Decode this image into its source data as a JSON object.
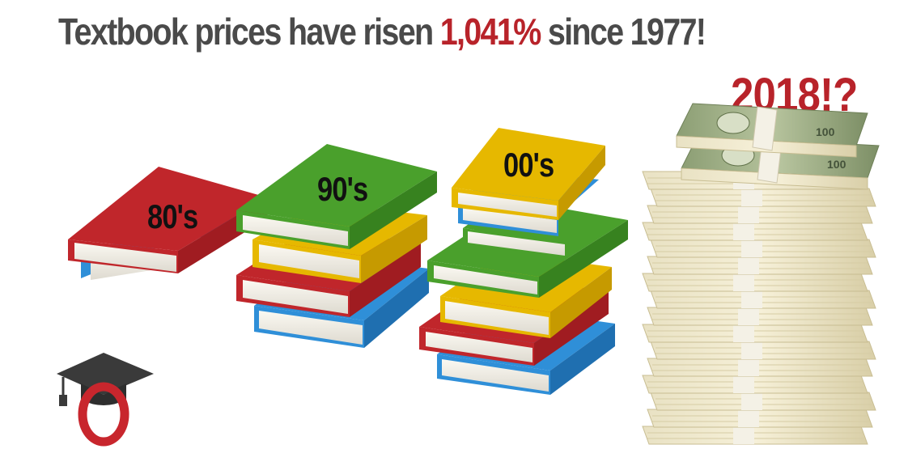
{
  "headline": {
    "prefix": "Textbook prices have risen ",
    "highlight": "1,041%",
    "suffix": " since 1977!",
    "text_color": "#4a4a4a",
    "highlight_color": "#b8232a"
  },
  "year_tag": {
    "text": "2018!?",
    "color": "#b8232a"
  },
  "stacks": [
    {
      "label": "80's",
      "books": [
        "red",
        "blue"
      ]
    },
    {
      "label": "90's",
      "books": [
        "green",
        "yellow",
        "red",
        "blue"
      ]
    },
    {
      "label": "00's",
      "books": [
        "yellow",
        "blue",
        "green",
        "green",
        "yellow",
        "red",
        "blue"
      ]
    }
  ],
  "money_stack": {
    "icon": "cash-stack-icon",
    "bill_label": "100",
    "band_color": "#f4f1e6",
    "bill_color": "#8a9a6a"
  },
  "logo": {
    "icon": "graduation-cap-icon",
    "letter": "O",
    "cap_color": "#3a3a3a",
    "ring_color": "#c8262d"
  },
  "colors": {
    "red": "#c0262b",
    "blue": "#2f8fd8",
    "green": "#4aa02c",
    "yellow": "#e6b800",
    "pages": "#f3f0e6"
  }
}
